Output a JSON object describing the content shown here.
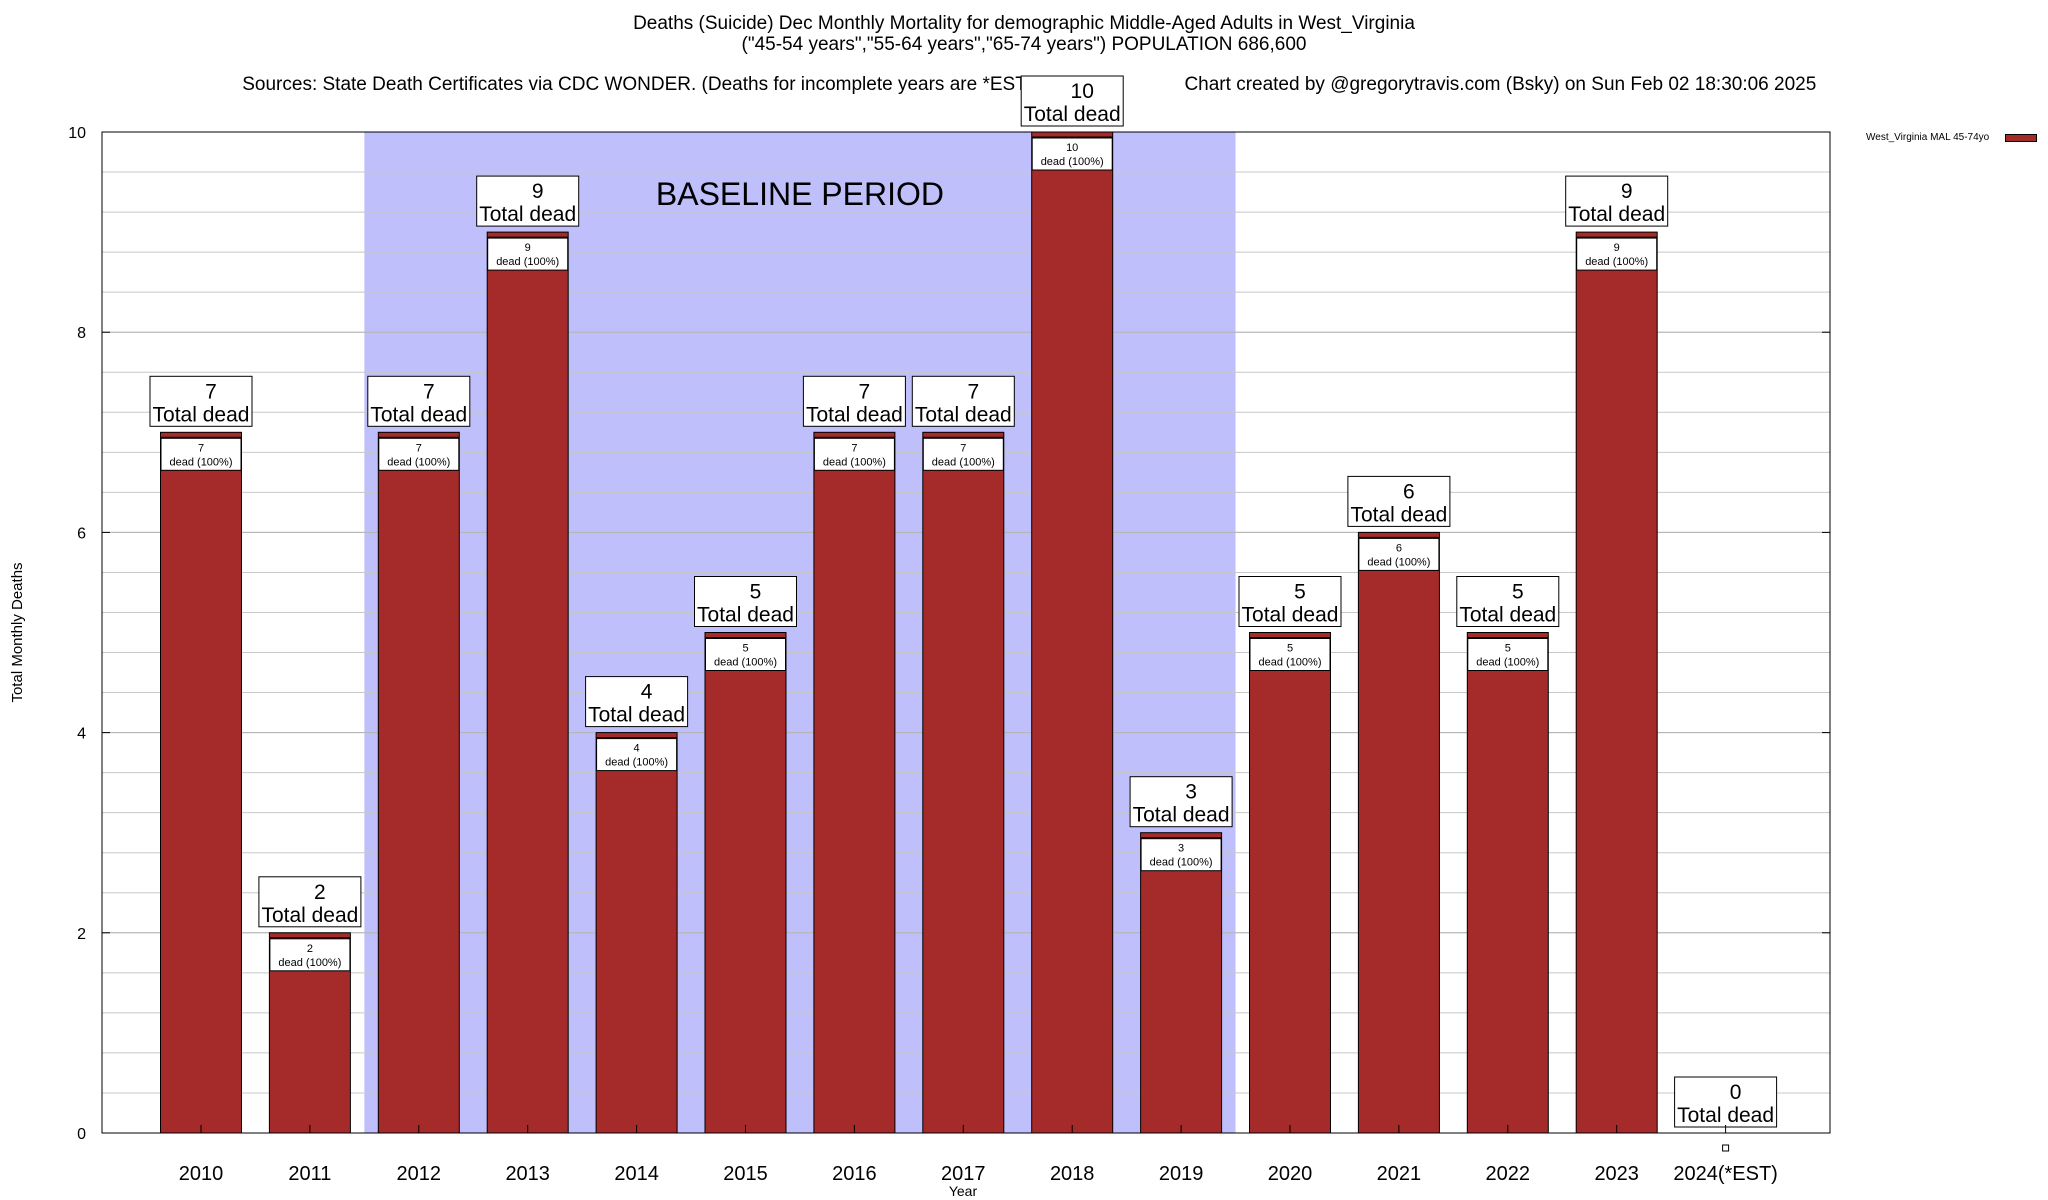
{
  "header": {
    "title_line1": "Deaths (Suicide) Dec Monthly Mortality for demographic Middle-Aged Adults in West_Virginia",
    "title_line2": "(\"45-54 years\",\"55-64 years\",\"65-74 years\") POPULATION 686,600",
    "sources": "Sources: State Death Certificates via CDC WONDER. (Deaths for incomplete years are *ESTimated)",
    "credit": "Chart created by @gregorytravis.com (Bsky) on Sun Feb 02 18:30:06 2025"
  },
  "legend": {
    "label": "West_Virginia MAL 45-74yo",
    "color": "#a52a2a"
  },
  "chart_data": {
    "type": "bar",
    "xlabel": "Year",
    "ylabel": "Total Monthly Deaths",
    "ylim": [
      0,
      10
    ],
    "yticks": [
      0,
      2,
      4,
      6,
      8,
      10
    ],
    "categories": [
      "2010",
      "2011",
      "2012",
      "2013",
      "2014",
      "2015",
      "2016",
      "2017",
      "2018",
      "2019",
      "2020",
      "2021",
      "2022",
      "2023",
      "2024(*EST)"
    ],
    "series": [
      {
        "name": "West_Virginia MAL 45-74yo",
        "color": "#a52a2a",
        "values": [
          7,
          2,
          7,
          9,
          4,
          5,
          7,
          7,
          10,
          3,
          5,
          6,
          5,
          9,
          0
        ]
      }
    ],
    "top_label_suffix": "Total dead",
    "inner_label_suffix": "dead (100%)",
    "baseline_period": {
      "label": "BASELINE PERIOD",
      "from": "2012",
      "to": "2019",
      "color": "#bfbffc"
    },
    "grid": true,
    "legend_position": "top-right"
  }
}
